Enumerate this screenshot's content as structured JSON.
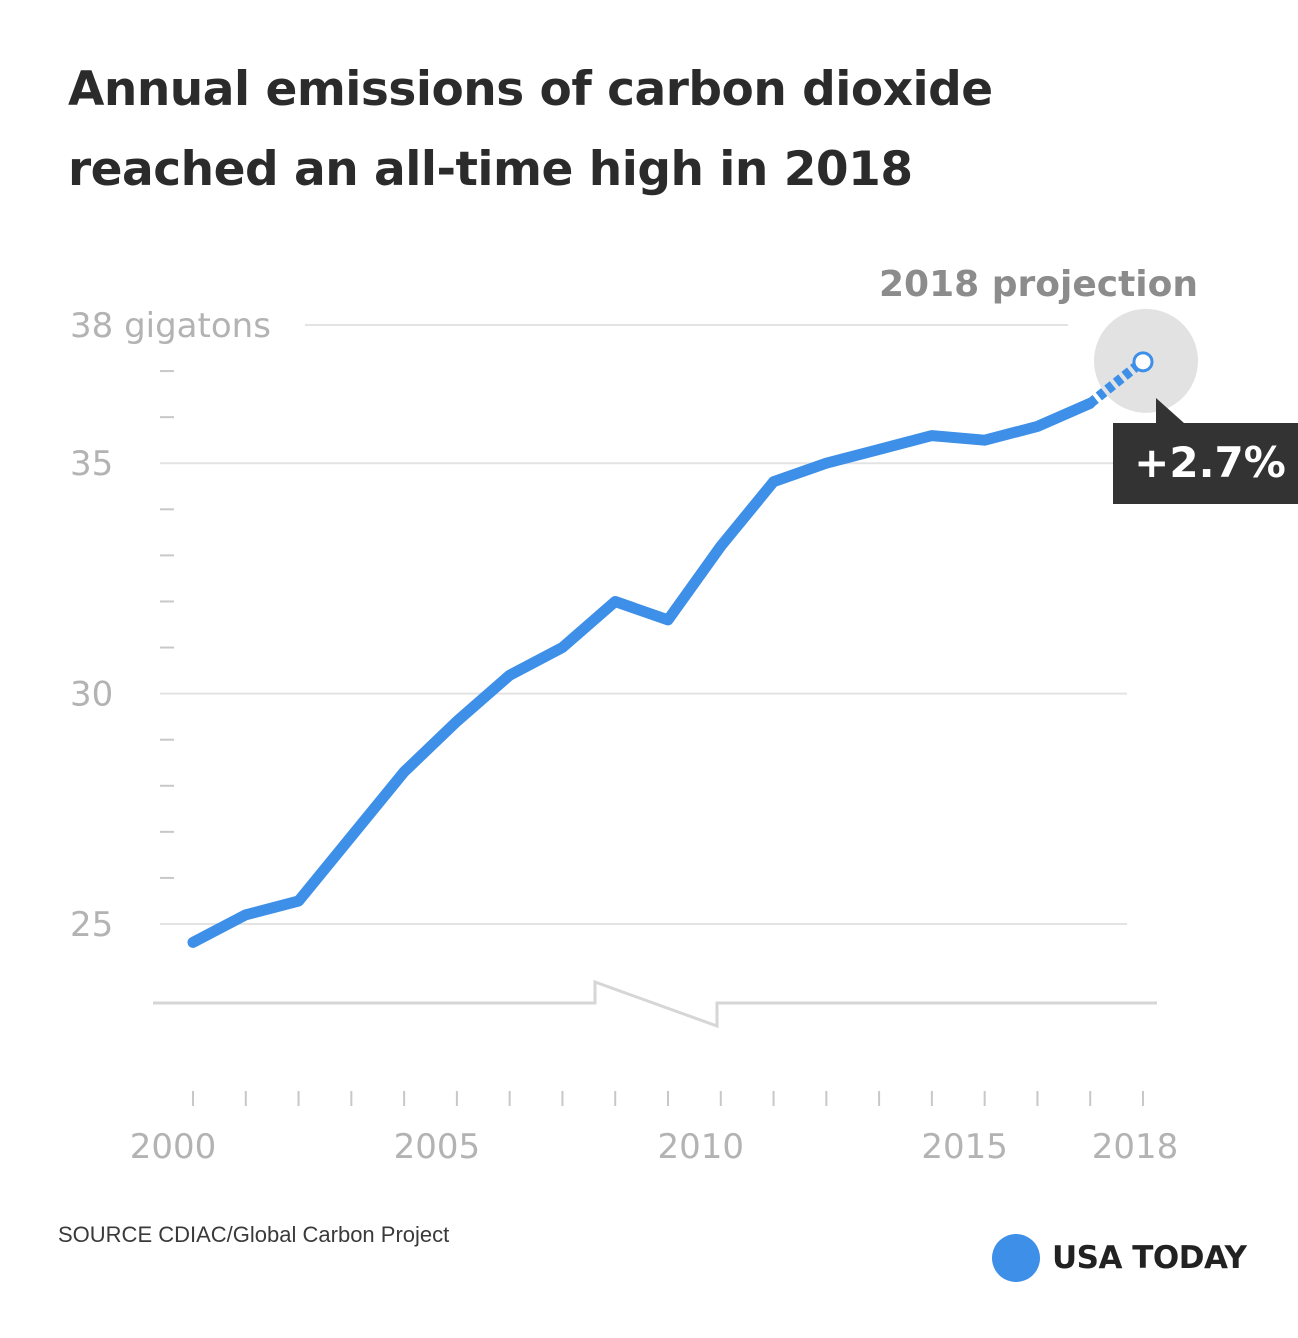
{
  "title_line1": "Annual emissions of carbon dioxide",
  "title_line2": "reached an all-time high in 2018",
  "source": "SOURCE CDIAC/Global Carbon Project",
  "brand": "USA TODAY",
  "colors": {
    "line": "#3d8fe8",
    "grid": "#e3e3e3",
    "axis_text": "#b3b3b3",
    "callout_bg": "#333333",
    "halo": "#e2e2e2",
    "brand_dot": "#3d8fe8"
  },
  "chart_data": {
    "type": "line",
    "title": "Annual emissions of carbon dioxide reached an all-time high in 2018",
    "xlabel": "",
    "ylabel": "",
    "ylim": [
      23.3,
      38
    ],
    "xlim": [
      2000,
      2018
    ],
    "grid": true,
    "y_ticks": [
      {
        "value": 38,
        "label": "38 gigatons"
      },
      {
        "value": 35,
        "label": "35"
      },
      {
        "value": 30,
        "label": "30"
      },
      {
        "value": 25,
        "label": "25"
      }
    ],
    "x_tick_labels": [
      {
        "value": 2000,
        "label": "2000"
      },
      {
        "value": 2005,
        "label": "2005"
      },
      {
        "value": 2010,
        "label": "2010"
      },
      {
        "value": 2015,
        "label": "2015"
      },
      {
        "value": 2018,
        "label": "2018"
      }
    ],
    "axis_break": true,
    "series": [
      {
        "x": [
          2000,
          2001,
          2002,
          2003,
          2004,
          2005,
          2006,
          2007,
          2008,
          2009,
          2010,
          2011,
          2012,
          2013,
          2014,
          2015,
          2016,
          2017
        ],
        "values": [
          24.6,
          25.2,
          25.5,
          26.9,
          28.3,
          29.4,
          30.4,
          31.0,
          32.0,
          31.6,
          33.2,
          34.6,
          35.0,
          35.3,
          35.6,
          35.5,
          35.8,
          36.3
        ]
      }
    ],
    "projection": {
      "x": [
        2017,
        2018
      ],
      "values": [
        36.3,
        37.2
      ],
      "label": "2018 projection",
      "change_label": "+2.7%"
    }
  }
}
